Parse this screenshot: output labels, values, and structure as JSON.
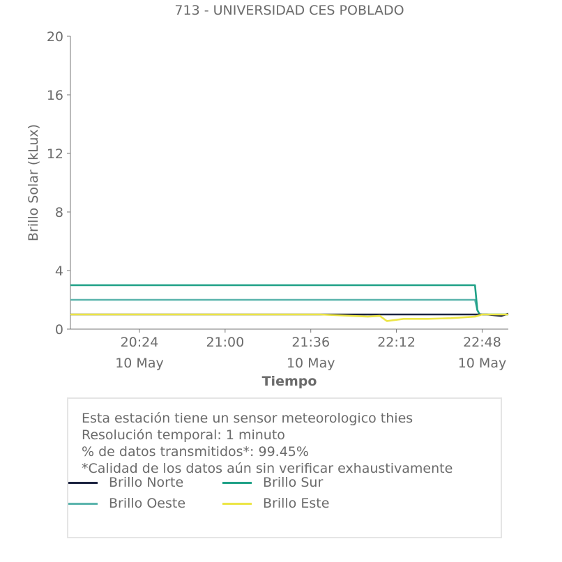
{
  "chart_data": {
    "type": "line",
    "title": "713 - UNIVERSIDAD CES POBLADO",
    "xlabel": "Tiempo",
    "ylabel": "Brillo Solar (kLux)",
    "ylim": [
      0,
      20
    ],
    "yticks": [
      0,
      4,
      8,
      12,
      16,
      20
    ],
    "xlim": [
      "2024-05-10 19:55",
      "2024-05-10 22:59"
    ],
    "xticks": [
      {
        "time": "2024-05-10 20:24",
        "label": "20:24",
        "sublabel": "10 May"
      },
      {
        "time": "2024-05-10 21:00",
        "label": "21:00",
        "sublabel": ""
      },
      {
        "time": "2024-05-10 21:36",
        "label": "21:36",
        "sublabel": "10 May"
      },
      {
        "time": "2024-05-10 22:12",
        "label": "22:12",
        "sublabel": ""
      },
      {
        "time": "2024-05-10 22:48",
        "label": "22:48",
        "sublabel": "10 May"
      }
    ],
    "grid": false,
    "legend_position": "inside-bottom-box",
    "series": [
      {
        "name": "Brillo Norte",
        "color": "#1c2340",
        "x": [
          "2024-05-10 19:55",
          "2024-05-10 20:10",
          "2024-05-10 20:30",
          "2024-05-10 20:50",
          "2024-05-10 21:10",
          "2024-05-10 21:30",
          "2024-05-10 21:50",
          "2024-05-10 22:10",
          "2024-05-10 22:30",
          "2024-05-10 22:50",
          "2024-05-10 22:53",
          "2024-05-10 22:56",
          "2024-05-10 22:59"
        ],
        "y": [
          1.0,
          1.0,
          1.0,
          1.0,
          1.0,
          1.0,
          1.0,
          1.0,
          1.0,
          1.0,
          0.95,
          0.9,
          1.05
        ]
      },
      {
        "name": "Brillo Sur",
        "color": "#1fa187",
        "x": [
          "2024-05-10 19:55",
          "2024-05-10 22:45",
          "2024-05-10 22:46",
          "2024-05-10 22:47",
          "2024-05-10 22:59"
        ],
        "y": [
          3.0,
          3.0,
          1.3,
          1.0,
          1.0
        ]
      },
      {
        "name": "Brillo Oeste",
        "color": "#5ab4ac",
        "x": [
          "2024-05-10 19:55",
          "2024-05-10 22:45",
          "2024-05-10 22:46",
          "2024-05-10 22:47",
          "2024-05-10 22:59"
        ],
        "y": [
          2.0,
          2.0,
          1.3,
          1.0,
          1.0
        ]
      },
      {
        "name": "Brillo Este",
        "color": "#ece545",
        "x": [
          "2024-05-10 19:55",
          "2024-05-10 20:30",
          "2024-05-10 21:10",
          "2024-05-10 21:40",
          "2024-05-10 22:00",
          "2024-05-10 22:05",
          "2024-05-10 22:08",
          "2024-05-10 22:15",
          "2024-05-10 22:25",
          "2024-05-10 22:35",
          "2024-05-10 22:45",
          "2024-05-10 22:48",
          "2024-05-10 22:59"
        ],
        "y": [
          1.0,
          1.0,
          1.0,
          1.0,
          0.85,
          0.9,
          0.55,
          0.7,
          0.7,
          0.75,
          0.85,
          1.0,
          1.0
        ]
      }
    ]
  },
  "info": {
    "line1": "Esta estación tiene un sensor meteorologico thies",
    "line2": "Resolución temporal: 1 minuto",
    "line3": "% de datos transmitidos*: 99.45%",
    "line4": "*Calidad de los datos aún sin verificar exhaustivamente"
  },
  "legend": [
    {
      "label": "Brillo Norte",
      "color": "#1c2340"
    },
    {
      "label": "Brillo Sur",
      "color": "#1fa187"
    },
    {
      "label": "Brillo Oeste",
      "color": "#5ab4ac"
    },
    {
      "label": "Brillo Este",
      "color": "#ece545"
    }
  ]
}
